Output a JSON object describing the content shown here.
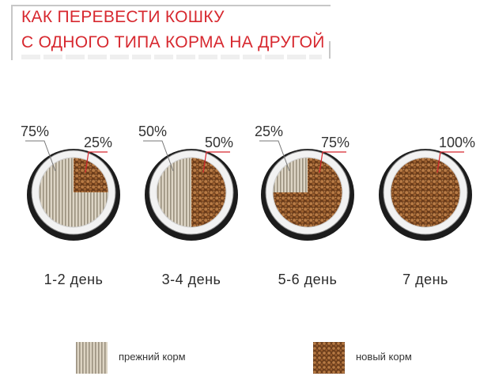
{
  "title": {
    "line1": "КАК ПЕРЕВЕСТИ КОШКУ",
    "line2": "С ОДНОГО ТИПА КОРМА НА ДРУГОЙ"
  },
  "colors": {
    "accent": "#d7282f",
    "old_food": "#cfc6b6",
    "new_food": "#a8683a",
    "bowl_rim": "#1d1d1d"
  },
  "stages": [
    {
      "old_label": "75%",
      "new_label": "25%",
      "new_fraction": 0.25,
      "day_label": "1-2 день"
    },
    {
      "old_label": "50%",
      "new_label": "50%",
      "new_fraction": 0.5,
      "day_label": "3-4 день"
    },
    {
      "old_label": "25%",
      "new_label": "75%",
      "new_fraction": 0.75,
      "day_label": "5-6 день"
    },
    {
      "old_label": "",
      "new_label": "100%",
      "new_fraction": 1.0,
      "day_label": "7 день"
    }
  ],
  "legend": {
    "old_food_label": "прежний корм",
    "new_food_label": "новый корм"
  }
}
